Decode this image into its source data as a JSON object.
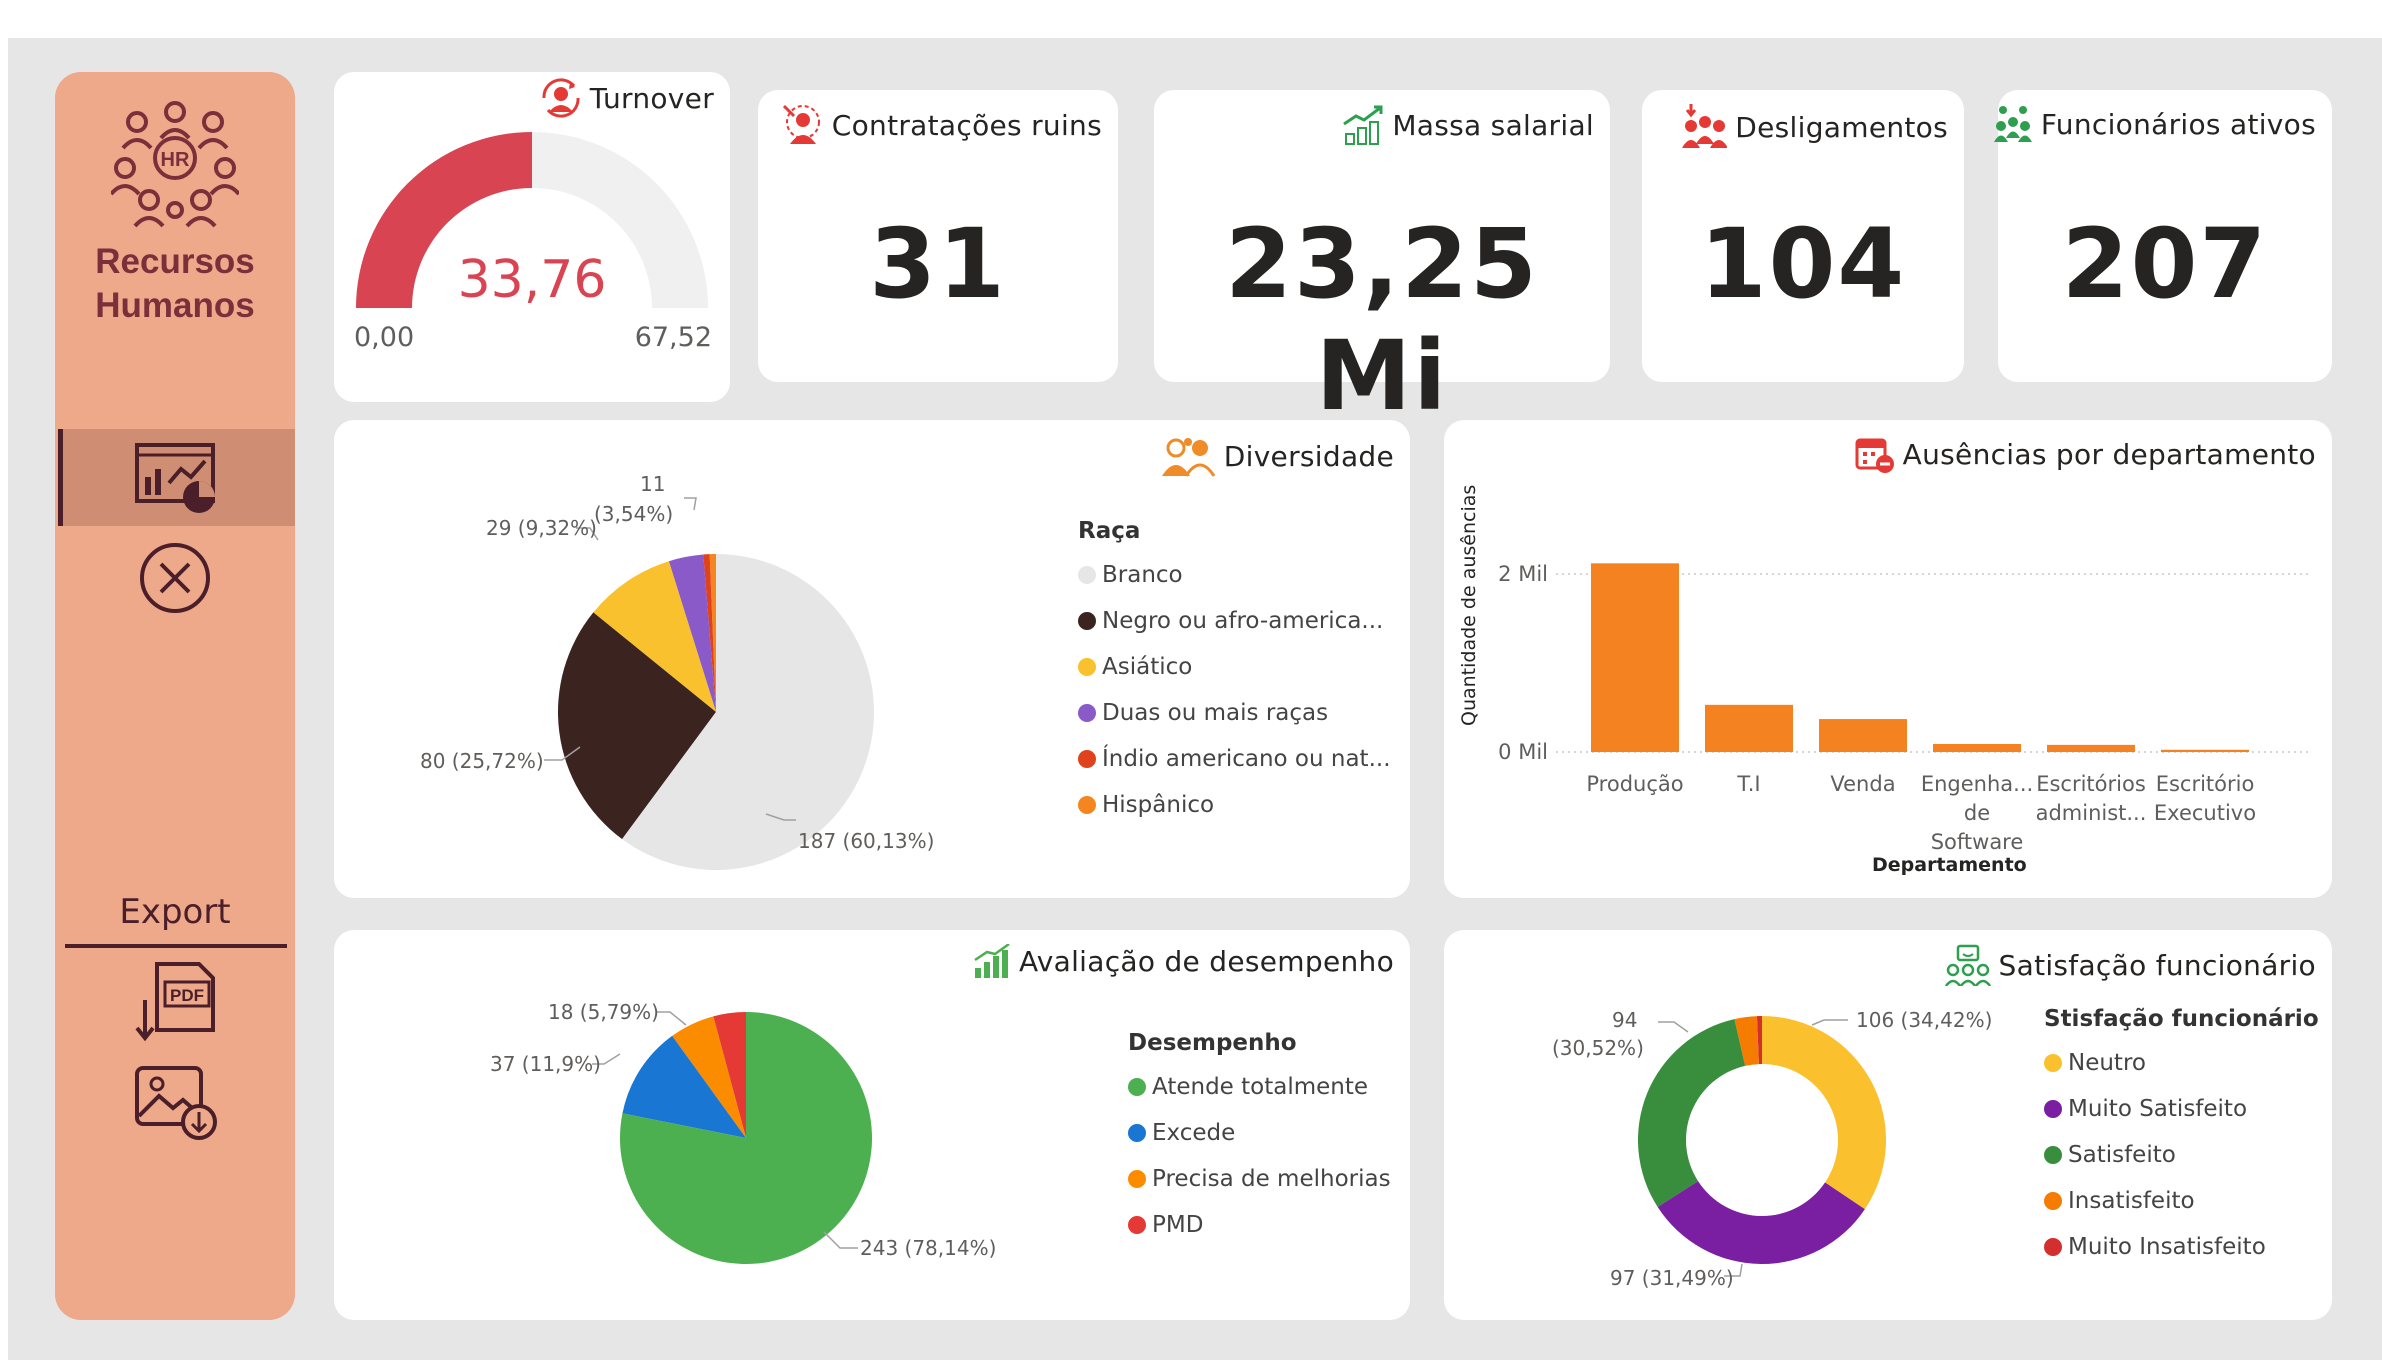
{
  "sidebar": {
    "title_line1": "Recursos",
    "title_line2": "Humanos",
    "export_label": "Export"
  },
  "turnover": {
    "title": "Turnover",
    "value": "33,76",
    "min_label": "0,00",
    "max_label": "67,52",
    "fraction": 0.5,
    "colors": {
      "fill": "#d94452",
      "track": "#f0f0f0"
    }
  },
  "kpis": [
    {
      "title": "Contratações ruins",
      "value": "31"
    },
    {
      "title": "Massa salarial",
      "value": "23,25 Mi"
    },
    {
      "title": "Desligamentos",
      "value": "104"
    },
    {
      "title": "Funcionários ativos",
      "value": "207"
    }
  ],
  "diversidade": {
    "title": "Diversidade",
    "legend_title": "Raça",
    "legend": [
      "Branco",
      "Negro ou afro-america...",
      "Asiático",
      "Duas ou mais raças",
      "Índio americano ou nat...",
      "Hispânico"
    ],
    "labels": {
      "branco": "187 (60,13%)",
      "negro": "80 (25,72%)",
      "asiatico": "29 (9,32%)",
      "duas_l1": "11",
      "duas_l2": "(3,54%)"
    }
  },
  "ausencias": {
    "title": "Ausências por departamento",
    "yaxis_title": "Quantidade de ausências",
    "xaxis_title": "Departamento",
    "y_ticks": [
      "2 Mil",
      "0 Mil"
    ],
    "categories": [
      "Produção",
      "T.I",
      "Venda",
      "Engenha... de Software",
      "Escritórios administ...",
      "Escritório Executivo"
    ],
    "category_lines": [
      [
        "Produção"
      ],
      [
        "T.I"
      ],
      [
        "Venda"
      ],
      [
        "Engenha...",
        "de",
        "Software"
      ],
      [
        "Escritórios",
        "administ..."
      ],
      [
        "Escritório",
        "Executivo"
      ]
    ]
  },
  "desempenho": {
    "title": "Avaliação de desempenho",
    "legend_title": "Desempenho",
    "legend": [
      "Atende totalmente",
      "Excede",
      "Precisa de melhorias",
      "PMD"
    ],
    "labels": {
      "atende": "243 (78,14%)",
      "excede": "37 (11,9%)",
      "precisa": "18 (5,79%)"
    }
  },
  "satisfacao": {
    "title": "Satisfação funcionário",
    "legend_title": "Stisfação funcionário",
    "legend": [
      "Neutro",
      "Muito Satisfeito",
      "Satisfeito",
      "Insatisfeito",
      "Muito Insatisfeito"
    ],
    "labels": {
      "neutro": "106 (34,42%)",
      "muito_satisfeito": "97 (31,49%)",
      "satisfeito_l1": "94",
      "satisfeito_l2": "(30,52%)"
    }
  },
  "chart_data": [
    {
      "type": "pie",
      "title": "Diversidade",
      "categories": [
        "Branco",
        "Negro ou afro-americano",
        "Asiático",
        "Duas ou mais raças",
        "Índio americano ou nativo",
        "Hispânico"
      ],
      "values": [
        187,
        80,
        29,
        11,
        2,
        2
      ],
      "colors": [
        "#e6e6e6",
        "#3b2320",
        "#f9c12e",
        "#8a5ac9",
        "#e0421b",
        "#f5861f"
      ]
    },
    {
      "type": "bar",
      "title": "Ausências por departamento",
      "categories": [
        "Produção",
        "T.I",
        "Venda",
        "Engenharia de Software",
        "Escritórios administrativos",
        "Escritório Executivo"
      ],
      "values": [
        2120,
        530,
        370,
        90,
        80,
        25
      ],
      "ylim": [
        0,
        2400
      ],
      "ylabel": "Quantidade de ausências",
      "xlabel": "Departamento",
      "color": "#f58220"
    },
    {
      "type": "pie",
      "title": "Avaliação de desempenho",
      "categories": [
        "Atende totalmente",
        "Excede",
        "Precisa de melhorias",
        "PMD"
      ],
      "values": [
        243,
        37,
        18,
        13
      ],
      "colors": [
        "#4caf50",
        "#1976d2",
        "#fb8c00",
        "#e53935"
      ]
    },
    {
      "type": "pie",
      "title": "Satisfação funcionário",
      "subtype": "donut",
      "categories": [
        "Neutro",
        "Muito Satisfeito",
        "Satisfeito",
        "Insatisfeito",
        "Muito Insatisfeito"
      ],
      "values": [
        106,
        97,
        94,
        9,
        2
      ],
      "colors": [
        "#fbc02d",
        "#7b1fa2",
        "#388e3c",
        "#f57c00",
        "#d32f2f"
      ]
    }
  ]
}
